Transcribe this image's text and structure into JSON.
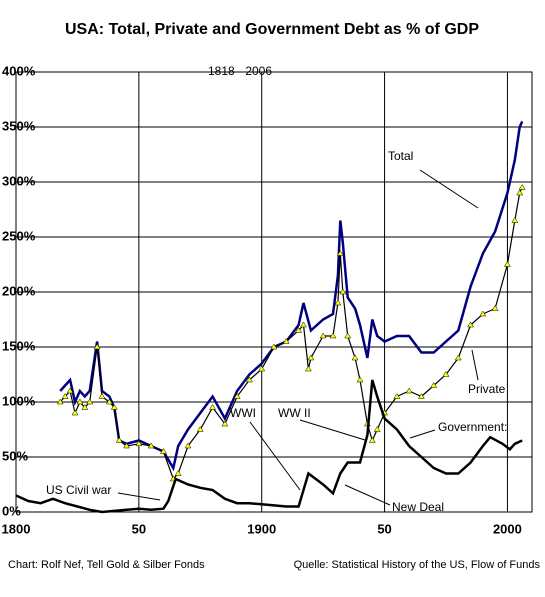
{
  "chart_data": {
    "type": "line",
    "title": "USA: Total, Private and Government Debt as % of GDP",
    "subtitle": "1818 - 2006",
    "xlim": [
      1800,
      2010
    ],
    "xticks": [
      1800,
      {
        "value": 1850,
        "label": "50"
      },
      1900,
      {
        "value": 1950,
        "label": "50"
      },
      2000
    ],
    "ylim": [
      0,
      400
    ],
    "yticks": [
      {
        "value": 0,
        "label": "0%"
      },
      {
        "value": 50,
        "label": "50%"
      },
      {
        "value": 100,
        "label": "100%"
      },
      {
        "value": 150,
        "label": "150%"
      },
      {
        "value": 200,
        "label": "200%"
      },
      {
        "value": 250,
        "label": "250%"
      },
      {
        "value": 300,
        "label": "300%"
      },
      {
        "value": 350,
        "label": "350%"
      },
      {
        "value": 400,
        "label": "400%"
      }
    ],
    "grid": true,
    "series": [
      {
        "name": "Total",
        "color": "#000080",
        "x": [
          1818,
          1820,
          1822,
          1824,
          1826,
          1828,
          1830,
          1833,
          1835,
          1838,
          1840,
          1842,
          1845,
          1850,
          1855,
          1860,
          1864,
          1866,
          1870,
          1875,
          1880,
          1885,
          1890,
          1895,
          1900,
          1905,
          1910,
          1915,
          1917,
          1920,
          1925,
          1929,
          1931,
          1932,
          1933,
          1935,
          1938,
          1940,
          1943,
          1945,
          1947,
          1950,
          1955,
          1960,
          1965,
          1970,
          1975,
          1980,
          1985,
          1990,
          1995,
          2000,
          2003,
          2005,
          2006
        ],
        "values": [
          110,
          115,
          120,
          100,
          110,
          105,
          110,
          155,
          110,
          105,
          95,
          65,
          62,
          65,
          60,
          55,
          40,
          60,
          75,
          90,
          105,
          85,
          110,
          125,
          135,
          150,
          155,
          170,
          190,
          165,
          175,
          180,
          215,
          265,
          245,
          195,
          185,
          170,
          140,
          175,
          160,
          155,
          160,
          160,
          145,
          145,
          155,
          165,
          205,
          235,
          255,
          290,
          320,
          350,
          355
        ]
      },
      {
        "name": "Private",
        "color": "#ffff00",
        "x": [
          1818,
          1820,
          1822,
          1824,
          1826,
          1828,
          1830,
          1833,
          1835,
          1838,
          1840,
          1842,
          1845,
          1850,
          1855,
          1860,
          1864,
          1866,
          1870,
          1875,
          1880,
          1885,
          1890,
          1895,
          1900,
          1905,
          1910,
          1915,
          1917,
          1919,
          1920,
          1925,
          1929,
          1931,
          1932,
          1933,
          1935,
          1938,
          1940,
          1943,
          1945,
          1947,
          1950,
          1955,
          1960,
          1965,
          1970,
          1975,
          1980,
          1985,
          1990,
          1995,
          2000,
          2003,
          2005,
          2006
        ],
        "values": [
          100,
          105,
          110,
          90,
          100,
          95,
          100,
          150,
          105,
          100,
          95,
          65,
          60,
          62,
          60,
          55,
          30,
          35,
          60,
          75,
          95,
          80,
          105,
          120,
          130,
          150,
          155,
          165,
          170,
          130,
          140,
          160,
          160,
          190,
          235,
          200,
          160,
          140,
          120,
          80,
          65,
          75,
          90,
          105,
          110,
          105,
          115,
          125,
          140,
          170,
          180,
          185,
          225,
          265,
          290,
          295
        ]
      },
      {
        "name": "Government",
        "color": "#000000",
        "x": [
          1800,
          1805,
          1810,
          1815,
          1820,
          1825,
          1830,
          1835,
          1840,
          1845,
          1850,
          1855,
          1860,
          1862,
          1865,
          1870,
          1875,
          1880,
          1885,
          1890,
          1895,
          1900,
          1905,
          1910,
          1915,
          1917,
          1919,
          1922,
          1925,
          1929,
          1932,
          1935,
          1940,
          1943,
          1945,
          1947,
          1950,
          1955,
          1960,
          1965,
          1970,
          1975,
          1980,
          1985,
          1990,
          1993,
          1998,
          2001,
          2003,
          2006
        ],
        "values": [
          15,
          10,
          8,
          12,
          8,
          5,
          2,
          0,
          1,
          2,
          3,
          2,
          3,
          10,
          30,
          25,
          22,
          20,
          12,
          8,
          8,
          7,
          6,
          5,
          5,
          20,
          35,
          30,
          25,
          17,
          35,
          45,
          45,
          70,
          120,
          105,
          85,
          75,
          60,
          50,
          40,
          35,
          35,
          45,
          60,
          68,
          62,
          57,
          62,
          65
        ]
      }
    ],
    "annotations": [
      "Total",
      "Private",
      "Government:",
      "WWI",
      "WW II",
      "US Civil war",
      "New Deal"
    ],
    "footer_left": "Chart: Rolf Nef, Tell Gold & Silber Fonds",
    "footer_right": "Quelle: Statistical History of the US,  Flow of Funds"
  }
}
